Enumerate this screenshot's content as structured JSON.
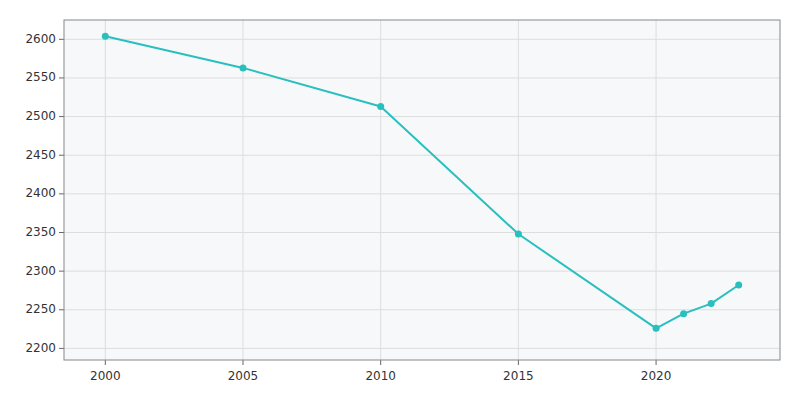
{
  "chart_data": {
    "type": "line",
    "x": [
      2000,
      2005,
      2010,
      2015,
      2020,
      2021,
      2022,
      2023
    ],
    "values": [
      2604,
      2563,
      2513,
      2348,
      2226,
      2245,
      2258,
      2282
    ],
    "color": "#2abfbf",
    "marker": "circle",
    "xlim": [
      1998.5,
      2024.5
    ],
    "ylim": [
      2185,
      2625
    ],
    "xticks": [
      2000,
      2005,
      2010,
      2015,
      2020
    ],
    "yticks": [
      2200,
      2250,
      2300,
      2350,
      2400,
      2450,
      2500,
      2550,
      2600
    ],
    "grid": true
  }
}
